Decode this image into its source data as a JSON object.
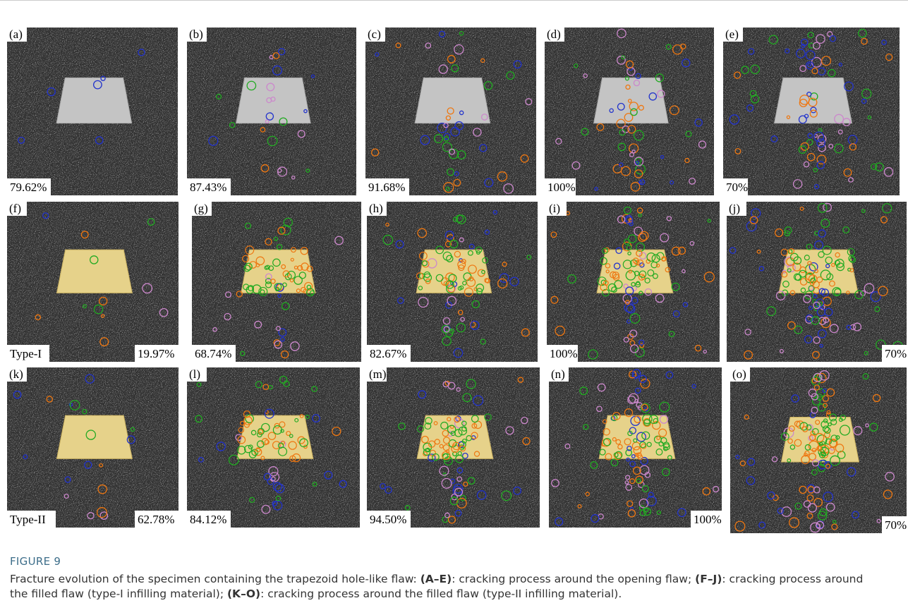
{
  "figure": {
    "panels": [
      {
        "label": "(a)",
        "percent": "79.62%"
      },
      {
        "label": "(b)",
        "percent": "87.43%"
      },
      {
        "label": "(c)",
        "percent": "91.68%"
      },
      {
        "label": "(d)",
        "percent": "100%"
      },
      {
        "label": "(e)",
        "percent": "70%"
      },
      {
        "label": "(f)",
        "percent": "19.97%",
        "type": "Type-I"
      },
      {
        "label": "(g)",
        "percent": "68.74%"
      },
      {
        "label": "(h)",
        "percent": "82.67%"
      },
      {
        "label": "(i)",
        "percent": "100%"
      },
      {
        "label": "(j)",
        "percent": "70%"
      },
      {
        "label": "(k)",
        "percent": "62.78%",
        "type": "Type-II"
      },
      {
        "label": "(l)",
        "percent": "84.12%"
      },
      {
        "label": "(m)",
        "percent": "94.50%"
      },
      {
        "label": "(n)",
        "percent": "100%"
      },
      {
        "label": "(o)",
        "percent": "70%"
      }
    ],
    "caption_label": "FIGURE 9",
    "caption": [
      {
        "text": "Fracture evolution of the specimen containing the trapezoid hole-like flaw: "
      },
      {
        "text": "(A–E)",
        "bold": true
      },
      {
        "text": ": cracking process around the opening flaw; "
      },
      {
        "text": "(F–J)",
        "bold": true
      },
      {
        "text": ": cracking process around the filled flaw (type-I infilling material); "
      },
      {
        "text": "(K–O)",
        "bold": true
      },
      {
        "text": ": cracking process around the filled flaw (type-II infilling material)."
      }
    ]
  }
}
